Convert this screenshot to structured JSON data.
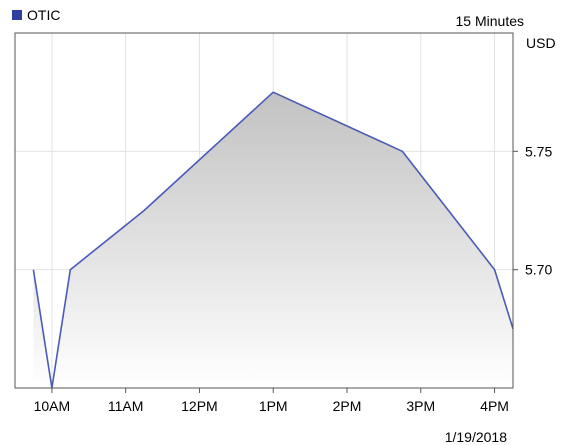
{
  "legend": {
    "symbol": "OTIC",
    "swatch_color": "#2e3f9e"
  },
  "interval": "15 Minutes",
  "currency": "USD",
  "date": "1/19/2018",
  "chart_data": {
    "type": "area",
    "series": [
      {
        "name": "OTIC",
        "color": "#4a5ab8",
        "points": [
          {
            "x": "09:45",
            "y": 5.7
          },
          {
            "x": "10:00",
            "y": 5.65
          },
          {
            "x": "10:15",
            "y": 5.7
          },
          {
            "x": "11:15",
            "y": 5.725
          },
          {
            "x": "13:00",
            "y": 5.775
          },
          {
            "x": "14:45",
            "y": 5.75
          },
          {
            "x": "16:00",
            "y": 5.7
          },
          {
            "x": "16:15",
            "y": 5.675
          }
        ]
      }
    ],
    "x_ticks": [
      {
        "t": "10:00",
        "label": "10AM"
      },
      {
        "t": "11:00",
        "label": "11AM"
      },
      {
        "t": "12:00",
        "label": "12PM"
      },
      {
        "t": "13:00",
        "label": "1PM"
      },
      {
        "t": "14:00",
        "label": "2PM"
      },
      {
        "t": "15:00",
        "label": "3PM"
      },
      {
        "t": "16:00",
        "label": "4PM"
      }
    ],
    "xlim": [
      "09:30",
      "16:15"
    ],
    "y_ticks": [
      {
        "v": 5.7,
        "label": "5.70"
      },
      {
        "v": 5.75,
        "label": "5.75"
      }
    ],
    "ylim": [
      5.65,
      5.8
    ],
    "grid": true,
    "fill": "gradient"
  }
}
